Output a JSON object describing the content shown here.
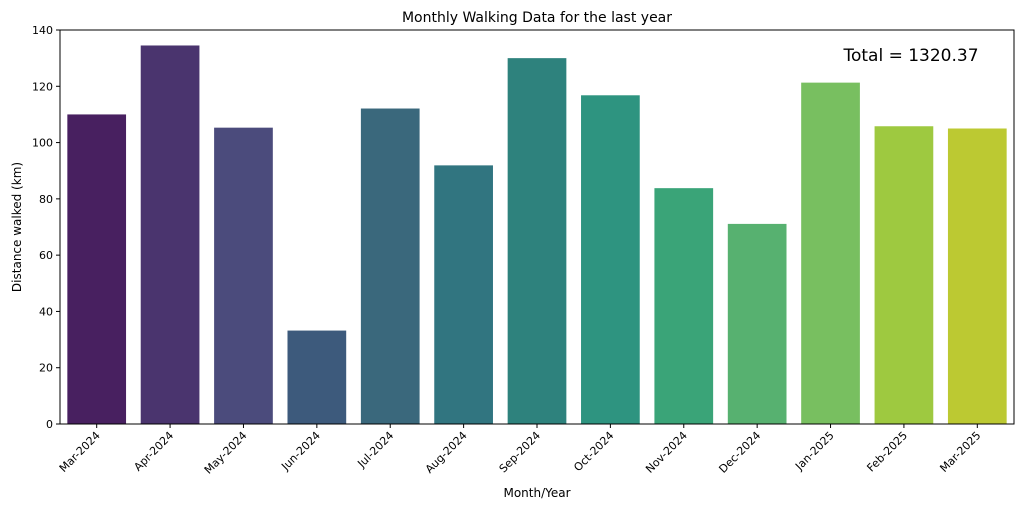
{
  "chart_data": {
    "type": "bar",
    "title": "Monthly Walking Data for the last year",
    "xlabel": "Month/Year",
    "ylabel": "Distance walked (km)",
    "annotation": "Total = 1320.37",
    "categories": [
      "Mar-2024",
      "Apr-2024",
      "May-2024",
      "Jun-2024",
      "Jul-2024",
      "Aug-2024",
      "Sep-2024",
      "Oct-2024",
      "Nov-2024",
      "Dec-2024",
      "Jan-2025",
      "Feb-2025",
      "Mar-2025"
    ],
    "values": [
      110,
      134.5,
      105.3,
      33.2,
      112.1,
      91.9,
      130,
      116.8,
      83.8,
      71.1,
      121.3,
      105.8,
      105
    ],
    "colors": [
      "#482060",
      "#4a346e",
      "#4b4b7c",
      "#3d5a7c",
      "#3a687c",
      "#317580",
      "#2e827d",
      "#2e9480",
      "#3aa478",
      "#57b170",
      "#78bf60",
      "#9ec940",
      "#bcc932"
    ],
    "ylim": [
      0,
      140
    ],
    "yticks": [
      0,
      20,
      40,
      60,
      80,
      100,
      120,
      140
    ],
    "legend": "none",
    "grid": false
  }
}
